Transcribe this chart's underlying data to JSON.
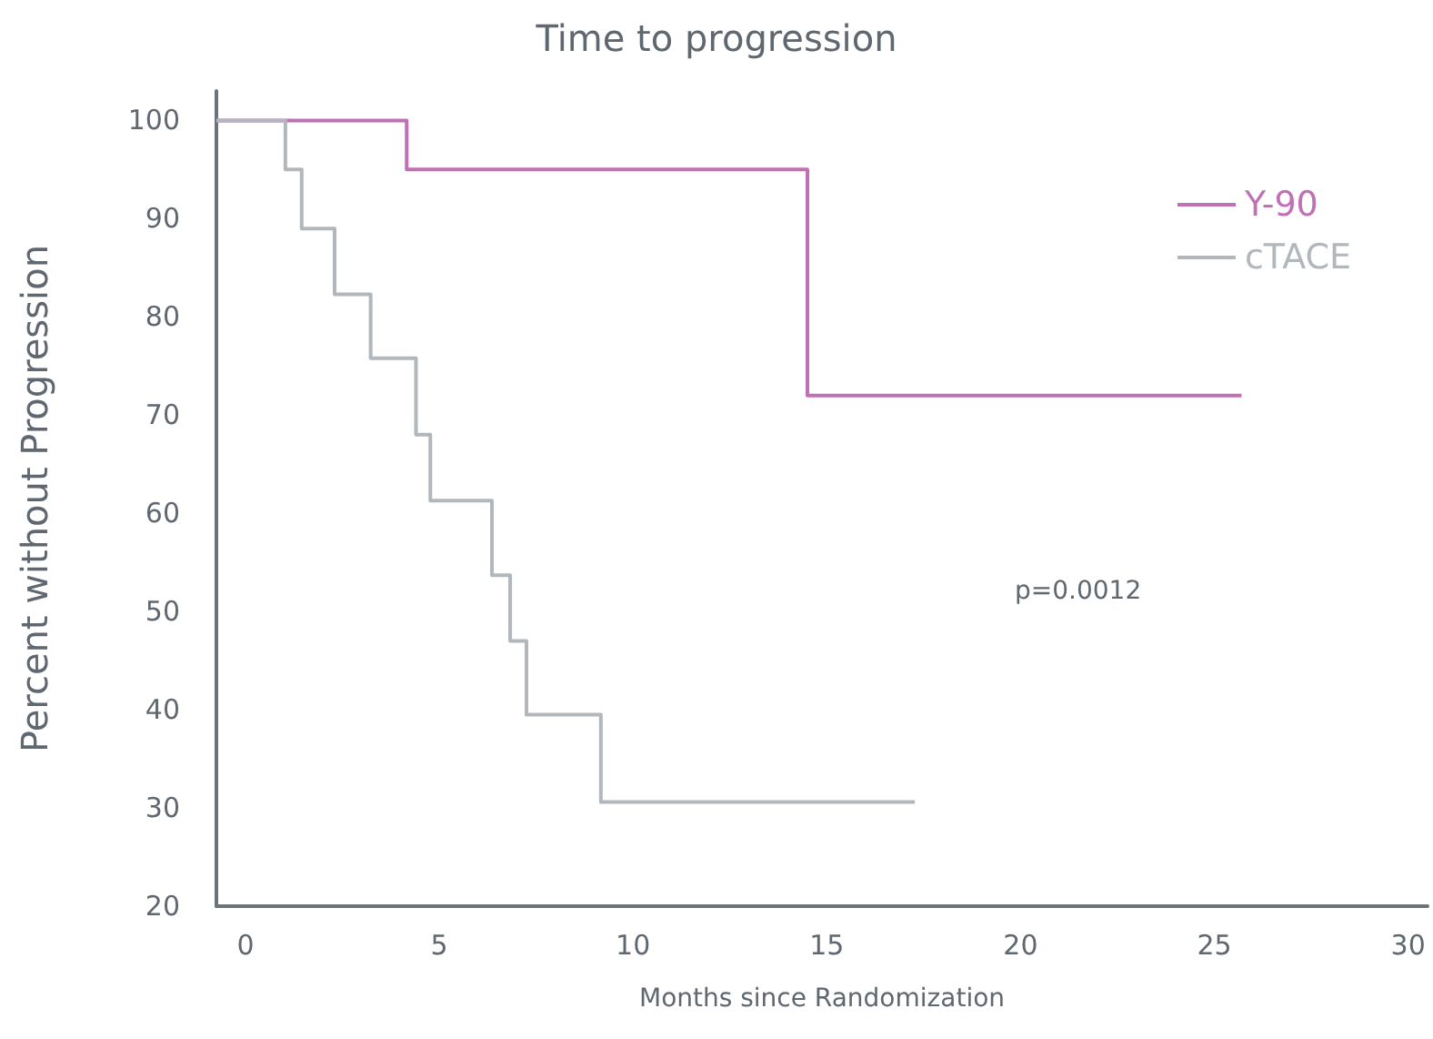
{
  "chart_data": {
    "type": "step",
    "title": "Time to progression",
    "xlabel": "Months since Randomization",
    "ylabel": "Percent without Progression",
    "annotations": [
      "p=0.0012"
    ],
    "xlim": [
      -0.75,
      30.5
    ],
    "xticks": [
      0,
      5,
      10,
      15,
      20,
      25,
      30
    ],
    "ylim": [
      20,
      103
    ],
    "yticks": [
      20,
      30,
      40,
      50,
      60,
      70,
      80,
      90,
      100
    ],
    "grid": false,
    "legend": "top right",
    "marker": "none",
    "line_style": "solid",
    "series": [
      {
        "name": "Y-90",
        "color": "#c070b4",
        "x": [
          -0.75,
          4.16,
          14.5,
          25.7
        ],
        "values": [
          100,
          95,
          72,
          72
        ]
      },
      {
        "name": "cTACE",
        "color": "#b0b7bd",
        "x": [
          -0.75,
          1.03,
          1.45,
          2.3,
          3.23,
          4.4,
          4.77,
          6.36,
          6.83,
          7.25,
          9.17,
          17.27
        ],
        "values": [
          100,
          95,
          89,
          82.3,
          75.8,
          68,
          61.3,
          53.7,
          47,
          39.5,
          30.6,
          30.6
        ]
      }
    ]
  }
}
